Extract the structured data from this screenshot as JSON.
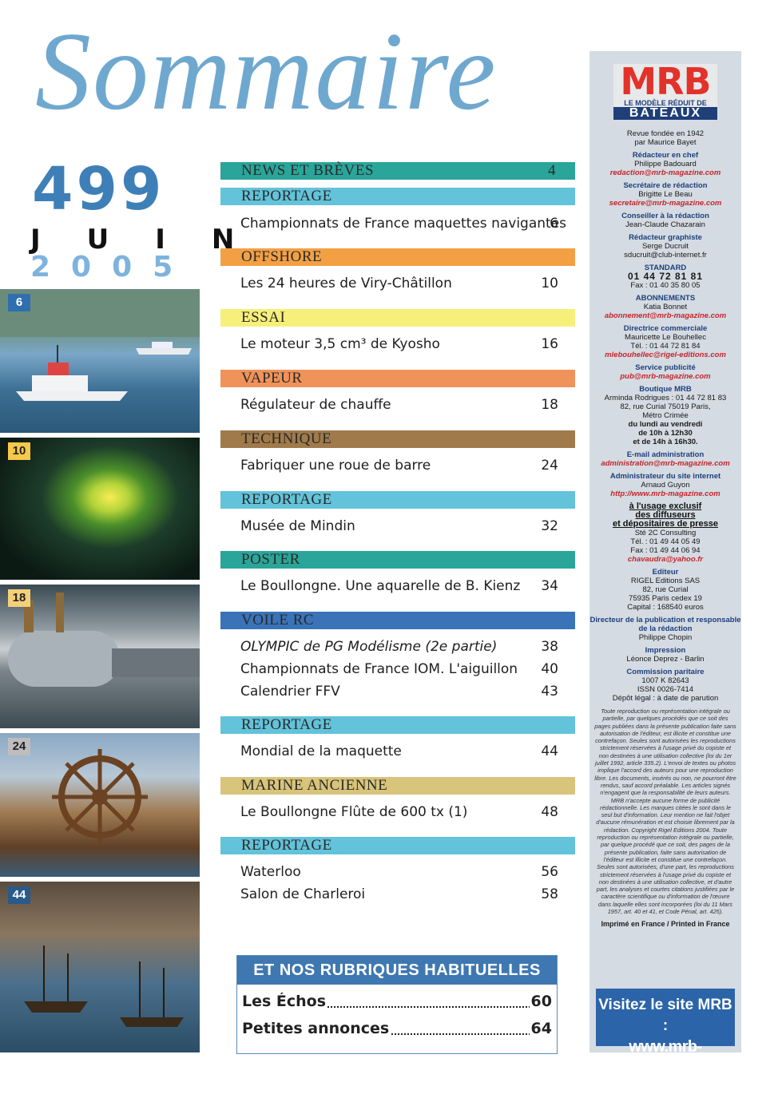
{
  "header": {
    "title": "Sommaire",
    "issue_number": "499",
    "month": "JUIN",
    "year": "2005"
  },
  "photos": [
    {
      "page": "6",
      "badge_color": "#2f6fb0",
      "text_color": "#ffffff"
    },
    {
      "page": "10",
      "badge_color": "#f7c84a",
      "text_color": "#222222"
    },
    {
      "page": "18",
      "badge_color": "#f5d07a",
      "text_color": "#222222"
    },
    {
      "page": "24",
      "badge_color": "#bdbdbd",
      "text_color": "#222222"
    },
    {
      "page": "44",
      "badge_color": "#2a5a8a",
      "text_color": "#ffffff"
    }
  ],
  "toc": {
    "sections": [
      {
        "label": "NEWS ET BRÈVES",
        "page": "4",
        "color": "#2aa59a"
      },
      {
        "label": "REPORTAGE",
        "color": "#62c3da",
        "items": [
          {
            "title": "Championnats de France maquettes navigantes",
            "page": "6"
          }
        ]
      },
      {
        "label": "OFFSHORE",
        "color": "#f3a044",
        "items": [
          {
            "title": "Les 24 heures de Viry-Châtillon",
            "page": "10"
          }
        ]
      },
      {
        "label": "ESSAI",
        "color": "#f6f07a",
        "items": [
          {
            "title": "Le moteur 3,5 cm³ de Kyosho",
            "page": "16"
          }
        ]
      },
      {
        "label": "VAPEUR",
        "color": "#f0935a",
        "items": [
          {
            "title": "Régulateur de chauffe",
            "page": "18"
          }
        ]
      },
      {
        "label": "TECHNIQUE",
        "color": "#a07a4a",
        "items": [
          {
            "title": "Fabriquer une roue de barre",
            "page": "24"
          }
        ]
      },
      {
        "label": "REPORTAGE",
        "color": "#62c3da",
        "items": [
          {
            "title": "Musée de Mindin",
            "page": "32"
          }
        ]
      },
      {
        "label": "POSTER",
        "color": "#2aa59a",
        "items": [
          {
            "title": "Le Boullongne. Une aquarelle de B. Kienz",
            "page": "34"
          }
        ]
      },
      {
        "label": "VOILE RC",
        "color": "#3a73b8",
        "items": [
          {
            "title": "OLYMPIC de PG Modélisme (2e partie)",
            "page": "38"
          },
          {
            "title": "Championnats de France IOM. L'aiguillon",
            "page": "40"
          },
          {
            "title": "Calendrier FFV",
            "page": "43"
          }
        ]
      },
      {
        "label": "REPORTAGE",
        "color": "#62c3da",
        "items": [
          {
            "title": "Mondial de la maquette",
            "page": "44"
          }
        ]
      },
      {
        "label": "MARINE ANCIENNE",
        "color": "#d8c47a",
        "items": [
          {
            "title": "Le Boullongne Flûte de 600 tx (1)",
            "page": "48"
          }
        ]
      },
      {
        "label": "REPORTAGE",
        "color": "#62c3da",
        "items": [
          {
            "title": "Waterloo",
            "page": "56"
          },
          {
            "title": "Salon de Charleroi",
            "page": "58"
          }
        ]
      }
    ]
  },
  "rubriques": {
    "heading": "ET NOS RUBRIQUES HABITUELLES",
    "items": [
      {
        "label": "Les Échos",
        "page": "60"
      },
      {
        "label": "Petites annonces",
        "page": "64"
      }
    ]
  },
  "masthead": {
    "logo": "MRB",
    "logo_sub": "LE MODÈLE RÉDUIT DE",
    "logo_bar": "BATEAUX",
    "founded": "Revue fondée en 1942",
    "founder": "par Maurice Bayet",
    "blocks": [
      {
        "heading": "Rédacteur en chef",
        "lines": [
          "Philippe Badouard"
        ],
        "email": "redaction@mrb-magazine.com"
      },
      {
        "heading": "Secrétaire de rédaction",
        "lines": [
          "Brigitte Le Beau"
        ],
        "email": "secretaire@mrb-magazine.com"
      },
      {
        "heading": "Conseiller à la rédaction",
        "lines": [
          "Jean-Claude Chazarain"
        ]
      },
      {
        "heading": "Rédacteur graphiste",
        "lines": [
          "Serge Ducruit",
          "sducruit@club-internet.fr"
        ]
      },
      {
        "heading": "STANDARD",
        "big": "01 44 72 81 81",
        "lines": [
          "Fax : 01 40 35 80 05"
        ]
      },
      {
        "heading": "ABONNEMENTS",
        "lines": [
          "Katia Bonnet"
        ],
        "email": "abonnement@mrb-magazine.com"
      },
      {
        "heading": "Directrice commerciale",
        "lines": [
          "Mauricette Le Bouhellec",
          "Tél. : 01 44 72 81 84"
        ],
        "email": "mlebouhellec@rigel-editions.com"
      },
      {
        "heading": "Service publicité",
        "email": "pub@mrb-magazine.com"
      },
      {
        "heading": "Boutique MRB",
        "lines": [
          "Arminda Rodrigues : 01 44 72 81 83",
          "82, rue Curial 75019 Paris,",
          "Métro Crimée"
        ],
        "bold_lines": [
          "du lundi au vendredi",
          "de 10h à 12h30",
          "et de 14h à 16h30."
        ]
      },
      {
        "heading": "E-mail administration",
        "email": "administration@mrb-magazine.com"
      },
      {
        "heading": "Administrateur du site internet",
        "lines": [
          "Arnaud Guyon"
        ],
        "email": "http://www.mrb-magazine.com"
      },
      {
        "underline": [
          "à l'usage exclusif",
          "des diffuseurs",
          "et dépositaires de presse"
        ],
        "lines": [
          "Sté 2C Consulting",
          "Tél. : 01 49 44 05 49",
          "Fax : 01 49 44 06 94"
        ],
        "email": "chavaudra@yahoo.fr"
      },
      {
        "heading": "Editeur",
        "lines": [
          "RIGEL Editions SAS",
          "82, rue Curial",
          "75935 Paris cedex 19",
          "Capital : 168540 euros"
        ]
      },
      {
        "heading": "Directeur de la publication et responsable de la rédaction",
        "lines": [
          "Philippe Chopin"
        ]
      },
      {
        "heading": "Impression",
        "lines": [
          "Léonce Deprez - Barlin"
        ]
      },
      {
        "heading": "Commission paritaire",
        "lines": [
          "1007 K 82643",
          "ISSN 0026-7414",
          "Dépôt légal : à date de parution"
        ]
      }
    ],
    "legal": "Toute reproduction ou représentation intégrale ou partielle, par quelques procédés que ce soit des pages publiées dans la présente publication faite sans autorisation de l'éditeur, est illicite et constitue une contrefaçon. Seules sont autorisées les reproductions strictement réservées à l'usage privé du copiste et non destinées à une utilisation collective (loi du 1er juillet 1992, article 335.2). L'envoi de textes ou photos implique l'accord des auteurs pour une reproduction libre. Les documents, insérés ou non, ne pourront être rendus, sauf accord préalable. Les articles signés n'engagent que la responsabilité de leurs auteurs. MRB n'accepte aucune forme de publicité rédactionnelle. Les marques citées le sont dans le seul but d'information. Leur mention ne fait l'objet d'aucune rémunération et est choisie librement par la rédaction. Copyright Rigel Editions 2004. Toute reproduction ou représentation intégrale ou partielle, par quelque procédé que ce soit, des pages de la présente publication, faite sans autorisation de l'éditeur est illicite et constitue une contrefaçon. Seules sont autorisées, d'une part, les reproductions strictement réservées à l'usage privé du copiste et non destinées à une utilisation collective, et d'autre part, les analyses et courtes citations justifiées par le caractère scientifique ou d'information de l'œuvre dans laquelle elles sont incorporées (loi du 11 Mars 1957, art. 40 et 41, et Code Pénal, art. 425).",
    "printed": "Imprimé en France / Printed in France",
    "visit_line1": "Visitez le site MRB :",
    "visit_line2": "www.mrb-magazine.com"
  }
}
